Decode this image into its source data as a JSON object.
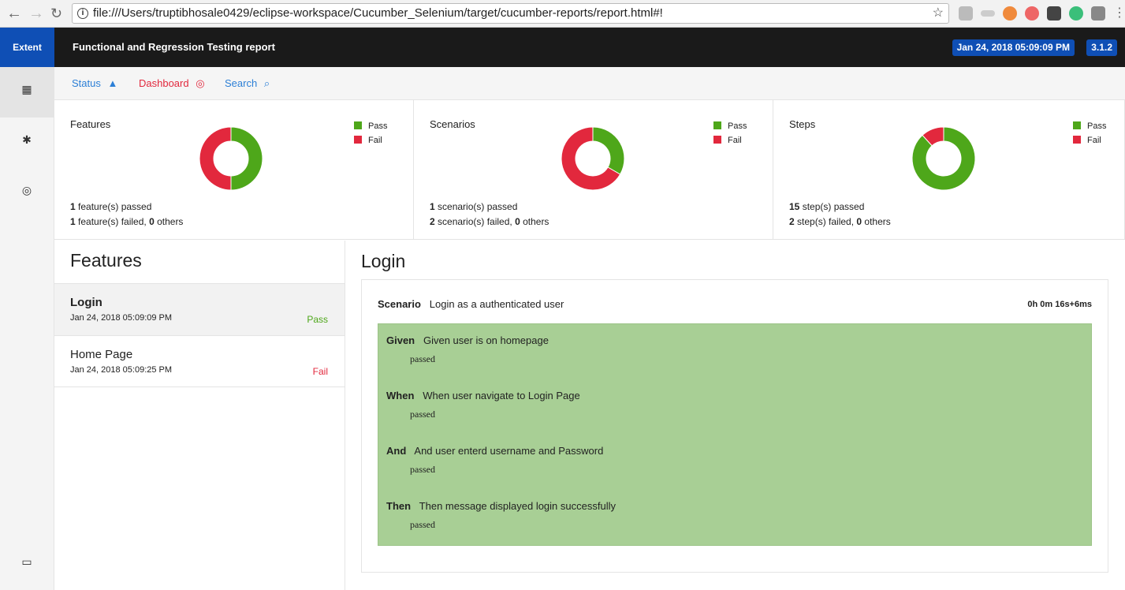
{
  "browser": {
    "url": "file:///Users/truptibhosale0429/eclipse-workspace/Cucumber_Selenium/target/cucumber-reports/report.html#!"
  },
  "header": {
    "brand": "Extent",
    "title": "Functional and Regression Testing report",
    "date": "Jan 24, 2018 05:09:09 PM",
    "version": "3.1.2"
  },
  "subnav": {
    "status": "Status",
    "dashboard": "Dashboard",
    "search": "Search"
  },
  "colors": {
    "pass": "#4ea71a",
    "fail": "#e2283d"
  },
  "legend": {
    "pass": "Pass",
    "fail": "Fail"
  },
  "cards": [
    {
      "title": "Features",
      "pass": 1,
      "fail": 1,
      "line1_num": "1",
      "line1": " feature(s) passed",
      "line2_num": "1",
      "line2": " feature(s) failed, ",
      "others": "0",
      "others_label": " others"
    },
    {
      "title": "Scenarios",
      "pass": 1,
      "fail": 2,
      "line1_num": "1",
      "line1": " scenario(s) passed",
      "line2_num": "2",
      "line2": " scenario(s) failed, ",
      "others": "0",
      "others_label": " others"
    },
    {
      "title": "Steps",
      "pass": 15,
      "fail": 2,
      "line1_num": "15",
      "line1": " step(s) passed",
      "line2_num": "2",
      "line2": " step(s) failed, ",
      "others": "0",
      "others_label": " others"
    }
  ],
  "features": {
    "heading": "Features",
    "items": [
      {
        "name": "Login",
        "date": "Jan 24, 2018 05:09:09 PM",
        "status": "Pass"
      },
      {
        "name": "Home Page",
        "date": "Jan 24, 2018 05:09:25 PM",
        "status": "Fail"
      }
    ]
  },
  "detail": {
    "title": "Login",
    "scenario_label": "Scenario",
    "scenario": "Login as a authenticated user",
    "duration": "0h 0m 16s+6ms",
    "steps": [
      {
        "kw": "Given",
        "text": "Given user is on homepage",
        "status": "passed"
      },
      {
        "kw": "When",
        "text": "When user navigate to Login Page",
        "status": "passed"
      },
      {
        "kw": "And",
        "text": "And user enterd username and Password",
        "status": "passed"
      },
      {
        "kw": "Then",
        "text": "Then message displayed login successfully",
        "status": "passed"
      }
    ]
  }
}
